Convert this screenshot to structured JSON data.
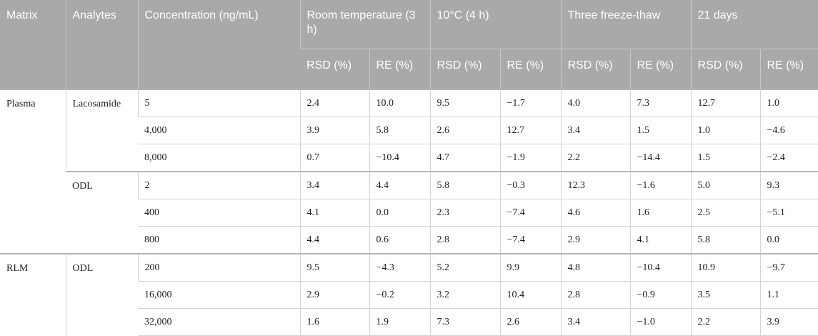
{
  "headers": {
    "matrix": "Matrix",
    "analytes": "Analytes",
    "concentration": "Concentration (ng/mL)",
    "groups": [
      "Room temperature (3 h)",
      "10°C (4 h)",
      "Three freeze-thaw",
      "21 days"
    ],
    "sub": [
      "RSD (%)",
      "RE (%)",
      "RSD (%)",
      "RE (%)",
      "RSD (%)",
      "RE (%)",
      "RSD (%)",
      "RE (%)"
    ]
  },
  "rows": [
    {
      "matrix": "Plasma",
      "analyte": "Lacosamide",
      "conc": "5",
      "vals": [
        "2.4",
        "10.0",
        "9.5",
        "−1.7",
        "4.0",
        "7.3",
        "12.7",
        "1.0"
      ]
    },
    {
      "conc": "4,000",
      "vals": [
        "3.9",
        "5.8",
        "2.6",
        "12.7",
        "3.4",
        "1.5",
        "1.0",
        "−4.6"
      ]
    },
    {
      "conc": "8,000",
      "vals": [
        "0.7",
        "−10.4",
        "4.7",
        "−1.9",
        "2.2",
        "−14.4",
        "1.5",
        "−2.4"
      ]
    },
    {
      "analyte": "ODL",
      "conc": "2",
      "vals": [
        "3.4",
        "4.4",
        "5.8",
        "−0.3",
        "12.3",
        "−1.6",
        "5.0",
        "9.3"
      ]
    },
    {
      "conc": "400",
      "vals": [
        "4.1",
        "0.0",
        "2.3",
        "−7.4",
        "4.6",
        "1.6",
        "2.5",
        "−5.1"
      ]
    },
    {
      "conc": "800",
      "vals": [
        "4.4",
        "0.6",
        "2.8",
        "−7.4",
        "2.9",
        "4.1",
        "5.8",
        "0.0"
      ]
    },
    {
      "matrix": "RLM",
      "analyte": "ODL",
      "conc": "200",
      "vals": [
        "9.5",
        "−4.3",
        "5.2",
        "9.9",
        "4.8",
        "−10.4",
        "10.9",
        "−9.7"
      ]
    },
    {
      "conc": "16,000",
      "vals": [
        "2.9",
        "−0.2",
        "3.2",
        "10.4",
        "2.8",
        "−0.9",
        "3.5",
        "1.1"
      ]
    },
    {
      "conc": "32,000",
      "vals": [
        "1.6",
        "1.9",
        "7.3",
        "2.6",
        "3.4",
        "−1.0",
        "2.2",
        "3.9"
      ]
    }
  ]
}
